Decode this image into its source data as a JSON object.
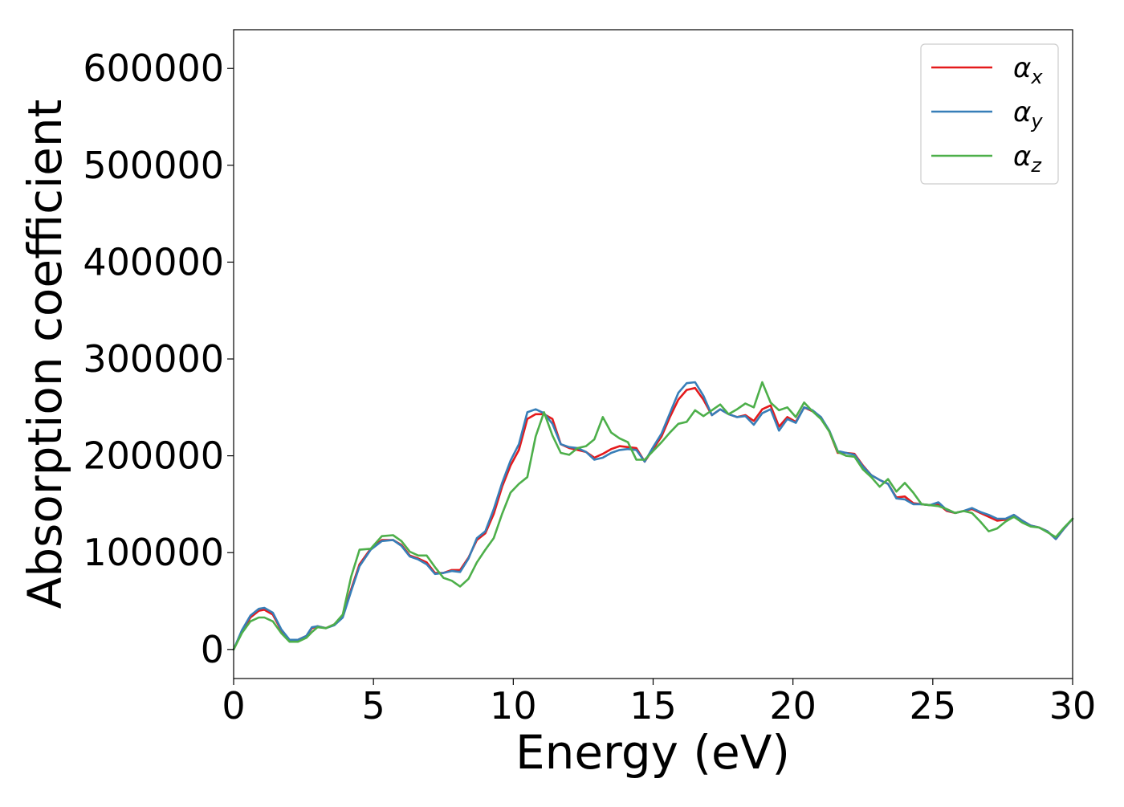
{
  "chart_data": {
    "type": "line",
    "title": "",
    "xlabel": "Energy (eV)",
    "ylabel": "Absorption coefficient",
    "xlim": [
      0,
      30
    ],
    "ylim": [
      -30000,
      640000
    ],
    "xticks": [
      0,
      5,
      10,
      15,
      20,
      25,
      30
    ],
    "xtick_labels": [
      "0",
      "5",
      "10",
      "15",
      "20",
      "25",
      "30"
    ],
    "yticks": [
      0,
      100000,
      200000,
      300000,
      400000,
      500000,
      600000
    ],
    "ytick_labels": [
      "0",
      "100000",
      "200000",
      "300000",
      "400000",
      "500000",
      "600000"
    ],
    "grid": false,
    "legend_position": "top-right",
    "series": [
      {
        "name": "α_x",
        "label_main": "α",
        "label_sub": "x",
        "color": "#e41a1c",
        "x": [
          0,
          0.3,
          0.6,
          0.9,
          1.1,
          1.4,
          1.7,
          2.0,
          2.3,
          2.6,
          2.8,
          3.0,
          3.3,
          3.6,
          3.9,
          4.2,
          4.5,
          4.9,
          5.3,
          5.7,
          6.0,
          6.3,
          6.6,
          6.9,
          7.2,
          7.5,
          7.8,
          8.1,
          8.4,
          8.7,
          9.0,
          9.3,
          9.6,
          9.9,
          10.2,
          10.5,
          10.8,
          11.1,
          11.4,
          11.7,
          12.0,
          12.3,
          12.6,
          12.9,
          13.2,
          13.5,
          13.8,
          14.1,
          14.4,
          14.7,
          15.0,
          15.3,
          15.6,
          15.9,
          16.2,
          16.5,
          16.8,
          17.1,
          17.4,
          17.7,
          18.0,
          18.3,
          18.6,
          18.9,
          19.2,
          19.5,
          19.8,
          20.1,
          20.4,
          20.7,
          21.0,
          21.3,
          21.6,
          21.9,
          22.2,
          22.5,
          22.8,
          23.1,
          23.4,
          23.7,
          24.0,
          24.3,
          24.6,
          24.9,
          25.2,
          25.5,
          25.8,
          26.1,
          26.4,
          26.7,
          27.0,
          27.3,
          27.6,
          27.9,
          28.2,
          28.5,
          28.8,
          29.1,
          29.4,
          29.7,
          30.0
        ],
        "values": [
          0,
          18000,
          33000,
          40000,
          41000,
          36000,
          20000,
          9000,
          10000,
          14000,
          22000,
          24000,
          22000,
          26000,
          34000,
          62000,
          88000,
          104000,
          113000,
          113000,
          108000,
          97000,
          94000,
          90000,
          79000,
          79000,
          82000,
          82000,
          95000,
          113000,
          120000,
          140000,
          168000,
          190000,
          206000,
          238000,
          243000,
          243000,
          238000,
          212000,
          208000,
          206000,
          204000,
          198000,
          202000,
          207000,
          210000,
          209000,
          208000,
          194000,
          207000,
          220000,
          240000,
          258000,
          268000,
          270000,
          258000,
          242000,
          248000,
          243000,
          240000,
          242000,
          236000,
          248000,
          252000,
          230000,
          240000,
          235000,
          250000,
          246000,
          240000,
          225000,
          203000,
          203000,
          202000,
          190000,
          180000,
          175000,
          171000,
          157000,
          158000,
          151000,
          150000,
          149000,
          150000,
          143000,
          141000,
          143000,
          145000,
          141000,
          137000,
          133000,
          134000,
          139000,
          133000,
          128000,
          126000,
          122000,
          114000,
          125000,
          135000
        ]
      },
      {
        "name": "α_y",
        "label_main": "α",
        "label_sub": "y",
        "color": "#377eb8",
        "x": [
          0,
          0.3,
          0.6,
          0.9,
          1.1,
          1.4,
          1.7,
          2.0,
          2.3,
          2.6,
          2.8,
          3.0,
          3.3,
          3.6,
          3.9,
          4.2,
          4.5,
          4.9,
          5.3,
          5.7,
          6.0,
          6.3,
          6.6,
          6.9,
          7.2,
          7.5,
          7.8,
          8.1,
          8.4,
          8.7,
          9.0,
          9.3,
          9.6,
          9.9,
          10.2,
          10.5,
          10.8,
          11.1,
          11.4,
          11.7,
          12.0,
          12.3,
          12.6,
          12.9,
          13.2,
          13.5,
          13.8,
          14.1,
          14.4,
          14.7,
          15.0,
          15.3,
          15.6,
          15.9,
          16.2,
          16.5,
          16.8,
          17.1,
          17.4,
          17.7,
          18.0,
          18.3,
          18.6,
          18.9,
          19.2,
          19.5,
          19.8,
          20.1,
          20.4,
          20.7,
          21.0,
          21.3,
          21.6,
          21.9,
          22.2,
          22.5,
          22.8,
          23.1,
          23.4,
          23.7,
          24.0,
          24.3,
          24.6,
          24.9,
          25.2,
          25.5,
          25.8,
          26.1,
          26.4,
          26.7,
          27.0,
          27.3,
          27.6,
          27.9,
          28.2,
          28.5,
          28.8,
          29.1,
          29.4,
          29.7,
          30.0
        ],
        "values": [
          0,
          20000,
          35000,
          42000,
          43000,
          38000,
          21000,
          10000,
          10000,
          14000,
          23000,
          24000,
          22000,
          25000,
          33000,
          60000,
          86000,
          103000,
          112000,
          113000,
          107000,
          96000,
          93000,
          88000,
          78000,
          79000,
          81000,
          80000,
          94000,
          115000,
          122000,
          145000,
          172000,
          195000,
          212000,
          245000,
          248000,
          244000,
          233000,
          212000,
          209000,
          208000,
          204000,
          196000,
          198000,
          203000,
          206000,
          207000,
          206000,
          194000,
          209000,
          223000,
          244000,
          265000,
          275000,
          276000,
          262000,
          242000,
          248000,
          243000,
          240000,
          241000,
          232000,
          244000,
          248000,
          226000,
          238000,
          234000,
          250000,
          247000,
          240000,
          226000,
          205000,
          203000,
          201000,
          189000,
          180000,
          175000,
          171000,
          156000,
          155000,
          150000,
          150000,
          149000,
          152000,
          144000,
          141000,
          143000,
          146000,
          142000,
          139000,
          135000,
          135000,
          139000,
          133000,
          128000,
          126000,
          122000,
          114000,
          125000,
          135000
        ]
      },
      {
        "name": "α_z",
        "label_main": "α",
        "label_sub": "z",
        "color": "#4daf4a",
        "x": [
          0,
          0.3,
          0.6,
          0.9,
          1.1,
          1.4,
          1.7,
          2.0,
          2.3,
          2.6,
          2.8,
          3.0,
          3.3,
          3.6,
          3.9,
          4.2,
          4.5,
          4.9,
          5.3,
          5.7,
          6.0,
          6.3,
          6.6,
          6.9,
          7.2,
          7.5,
          7.8,
          8.1,
          8.4,
          8.7,
          9.0,
          9.3,
          9.6,
          9.9,
          10.2,
          10.5,
          10.8,
          11.1,
          11.4,
          11.7,
          12.0,
          12.3,
          12.6,
          12.9,
          13.2,
          13.5,
          13.8,
          14.1,
          14.4,
          14.7,
          15.0,
          15.3,
          15.6,
          15.9,
          16.2,
          16.5,
          16.8,
          17.1,
          17.4,
          17.7,
          18.0,
          18.3,
          18.6,
          18.9,
          19.2,
          19.5,
          19.8,
          20.1,
          20.4,
          20.7,
          21.0,
          21.3,
          21.6,
          21.9,
          22.2,
          22.5,
          22.8,
          23.1,
          23.4,
          23.7,
          24.0,
          24.3,
          24.6,
          24.9,
          25.2,
          25.5,
          25.8,
          26.1,
          26.4,
          26.7,
          27.0,
          27.3,
          27.6,
          27.9,
          28.2,
          28.5,
          28.8,
          29.1,
          29.4,
          29.7,
          30.0
        ],
        "values": [
          0,
          17000,
          29000,
          33000,
          33000,
          29000,
          17000,
          8000,
          8000,
          12000,
          18000,
          23000,
          22000,
          26000,
          36000,
          75000,
          103000,
          104000,
          117000,
          118000,
          112000,
          101000,
          97000,
          97000,
          85000,
          74000,
          71000,
          65000,
          73000,
          90000,
          103000,
          115000,
          140000,
          162000,
          171000,
          178000,
          220000,
          245000,
          221000,
          203000,
          201000,
          208000,
          210000,
          217000,
          240000,
          224000,
          218000,
          214000,
          196000,
          196000,
          205000,
          214000,
          224000,
          233000,
          235000,
          247000,
          241000,
          247000,
          253000,
          243000,
          248000,
          254000,
          250000,
          276000,
          255000,
          247000,
          250000,
          240000,
          255000,
          246000,
          238000,
          225000,
          204000,
          200000,
          199000,
          186000,
          178000,
          168000,
          176000,
          163000,
          172000,
          162000,
          150000,
          149000,
          148000,
          145000,
          141000,
          143000,
          141000,
          132000,
          122000,
          125000,
          132000,
          137000,
          131000,
          127000,
          126000,
          121000,
          116000,
          126000,
          135000
        ]
      }
    ]
  }
}
